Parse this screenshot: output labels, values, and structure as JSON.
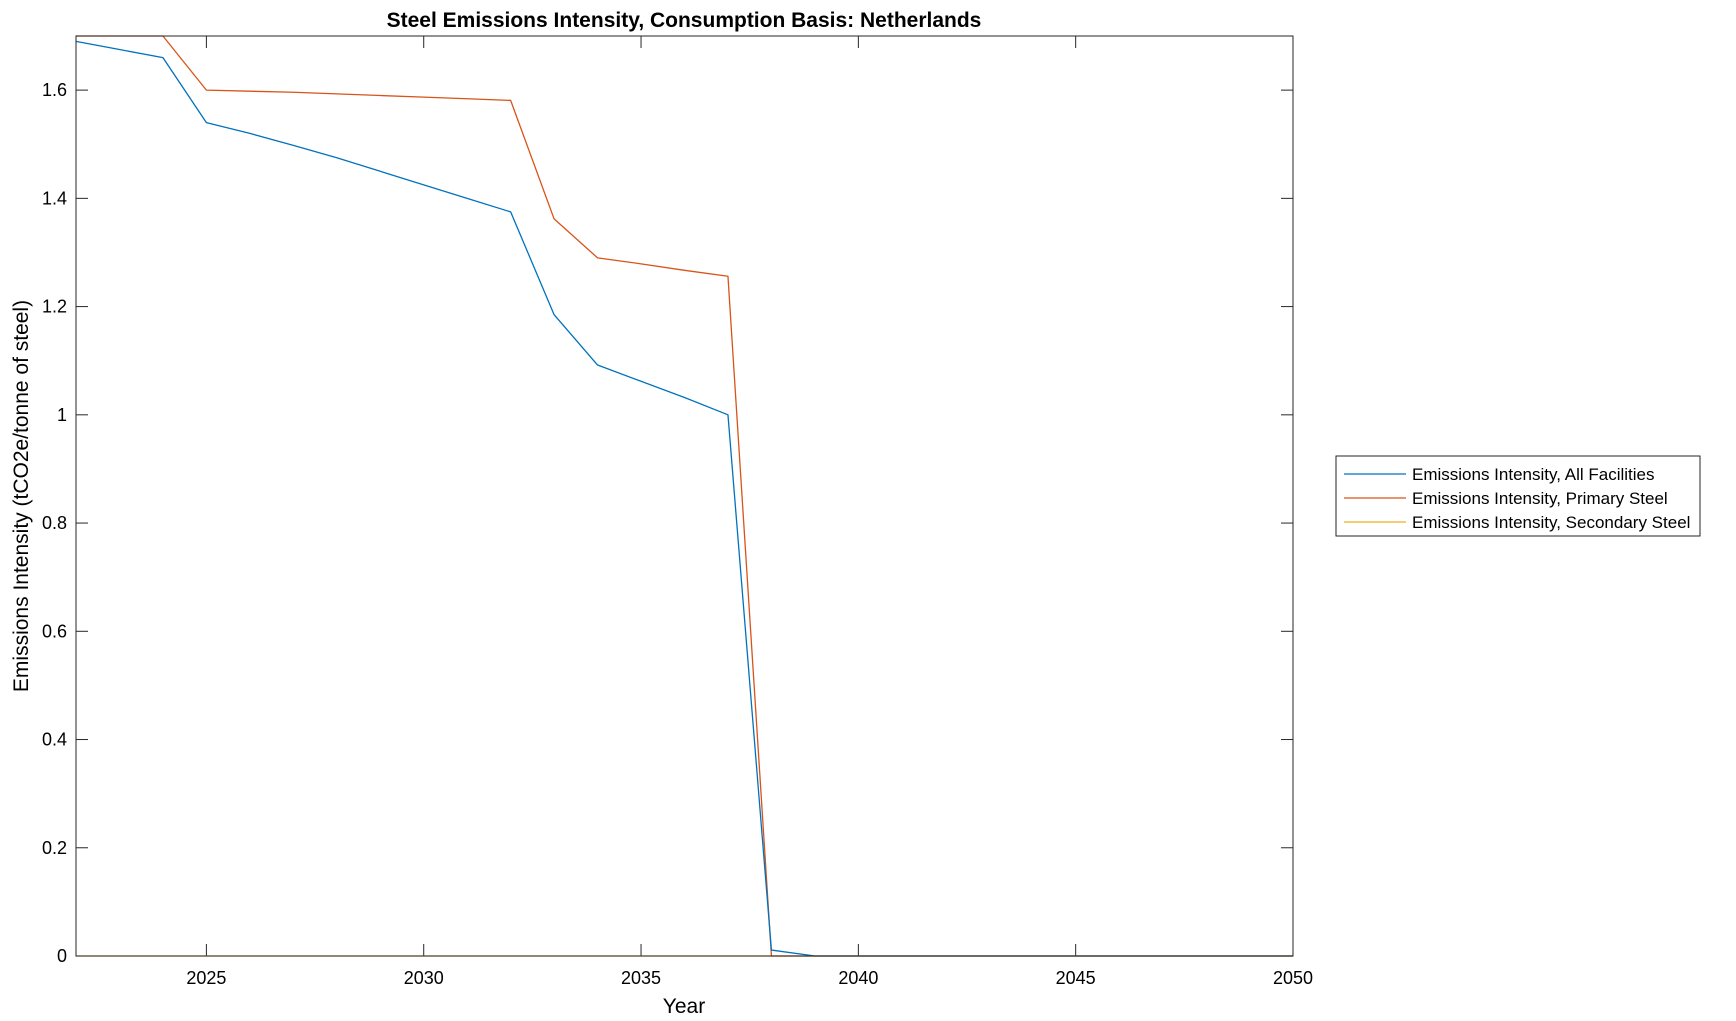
{
  "chart_data": {
    "type": "line",
    "title": "Steel Emissions Intensity, Consumption Basis: Netherlands",
    "xlabel": "Year",
    "ylabel": "Emissions Intensity (tCO2e/tonne of steel)",
    "xlim": [
      2022,
      2050
    ],
    "ylim": [
      0,
      1.7
    ],
    "xticks": [
      2025,
      2030,
      2035,
      2040,
      2045,
      2050
    ],
    "yticks": [
      0,
      0.2,
      0.4,
      0.6,
      0.8,
      1,
      1.2,
      1.4,
      1.6
    ],
    "ytick_labels": [
      "0",
      "0.2",
      "0.4",
      "0.6",
      "0.8",
      "1",
      "1.2",
      "1.4",
      "1.6"
    ],
    "grid": false,
    "legend_position": "outside right",
    "x": [
      2022,
      2023,
      2024,
      2025,
      2026,
      2027,
      2028,
      2029,
      2030,
      2031,
      2032,
      2033,
      2034,
      2035,
      2036,
      2037,
      2038,
      2039,
      2040,
      2041,
      2042,
      2043,
      2044,
      2045,
      2046,
      2047,
      2048,
      2049,
      2050
    ],
    "series": [
      {
        "name": "Emissions Intensity, All Facilities",
        "color": "#0072BD",
        "values": [
          1.69,
          1.675,
          1.66,
          1.54,
          1.52,
          1.498,
          1.475,
          1.45,
          1.425,
          1.4,
          1.375,
          1.185,
          1.092,
          1.062,
          1.032,
          1.0,
          0.011,
          0.0,
          0.0,
          0.0,
          0.0,
          0.0,
          0.0,
          0.0,
          0.0,
          0.0,
          0.0,
          0.0,
          0.0
        ]
      },
      {
        "name": "Emissions Intensity, Primary Steel",
        "color": "#D95319",
        "values": [
          1.7,
          1.7,
          1.7,
          1.6,
          1.598,
          1.596,
          1.593,
          1.59,
          1.587,
          1.584,
          1.581,
          1.362,
          1.29,
          1.279,
          1.267,
          1.256,
          0.0,
          0.0,
          0.0,
          0.0,
          0.0,
          0.0,
          0.0,
          0.0,
          0.0,
          0.0,
          0.0,
          0.0,
          0.0
        ]
      },
      {
        "name": "Emissions Intensity, Secondary Steel",
        "color": "#EDB120",
        "values": [
          0,
          0,
          0,
          0,
          0,
          0,
          0,
          0,
          0,
          0,
          0,
          0,
          0,
          0,
          0,
          0,
          0,
          0,
          0,
          0,
          0,
          0,
          0,
          0,
          0,
          0,
          0,
          0,
          0
        ]
      }
    ]
  }
}
